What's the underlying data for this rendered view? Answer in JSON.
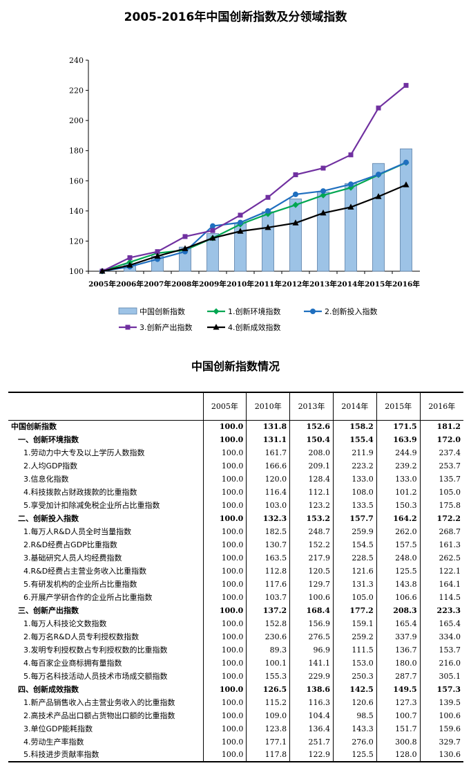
{
  "chart_data": {
    "type": "bar+line",
    "title": "2005-2016年中国创新指数及分领域指数",
    "x": [
      "2005年",
      "2006年",
      "2007年",
      "2008年",
      "2009年",
      "2010年",
      "2011年",
      "2012年",
      "2013年",
      "2014年",
      "2015年",
      "2016年"
    ],
    "ylim": [
      100,
      240
    ],
    "yticks": [
      100,
      120,
      140,
      160,
      180,
      200,
      220,
      240
    ],
    "grid": false,
    "legend_position": "bottom",
    "bar_series": {
      "name": "中国创新指数",
      "color": "#9dc3e6",
      "values": [
        100.0,
        105.0,
        110.0,
        116.0,
        125.0,
        131.8,
        139.5,
        148.0,
        152.6,
        158.2,
        171.5,
        181.2
      ]
    },
    "series": [
      {
        "name": "1.创新环境指数",
        "color": "#00a651",
        "marker": "diamond",
        "values": [
          100.0,
          106.0,
          112.0,
          114.0,
          122.0,
          131.1,
          138.0,
          144.0,
          150.4,
          155.4,
          163.9,
          172.0
        ]
      },
      {
        "name": "2.创新投入指数",
        "color": "#1f6fbf",
        "marker": "circle",
        "values": [
          100.0,
          103.0,
          108.0,
          113.0,
          130.0,
          132.3,
          140.0,
          151.0,
          153.2,
          157.7,
          164.2,
          172.2
        ]
      },
      {
        "name": "3.创新产出指数",
        "color": "#7030a0",
        "marker": "square",
        "values": [
          100.0,
          109.0,
          113.0,
          123.0,
          127.0,
          137.2,
          149.0,
          164.0,
          168.4,
          177.2,
          208.3,
          223.3
        ]
      },
      {
        "name": "4.创新成效指数",
        "color": "#000000",
        "marker": "triangle",
        "values": [
          100.0,
          104.0,
          110.0,
          115.0,
          122.0,
          126.5,
          129.0,
          132.0,
          138.6,
          142.5,
          149.5,
          157.3
        ]
      }
    ]
  },
  "table": {
    "title": "中国创新指数情况",
    "headers": [
      "",
      "2005年",
      "2010年",
      "2013年",
      "2014年",
      "2015年",
      "2016年"
    ],
    "rows": [
      {
        "level": 0,
        "name": "中国创新指数",
        "values": [
          "100.0",
          "131.8",
          "152.6",
          "158.2",
          "171.5",
          "181.2"
        ]
      },
      {
        "level": 1,
        "name": "一、创新环境指数",
        "values": [
          "100.0",
          "131.1",
          "150.4",
          "155.4",
          "163.9",
          "172.0"
        ]
      },
      {
        "level": 2,
        "name": "1.劳动力中大专及以上学历人数指数",
        "values": [
          "100.0",
          "161.7",
          "208.0",
          "211.9",
          "244.9",
          "237.4"
        ]
      },
      {
        "level": 2,
        "name": "2.人均GDP指数",
        "values": [
          "100.0",
          "166.6",
          "209.1",
          "223.2",
          "239.2",
          "253.7"
        ]
      },
      {
        "level": 2,
        "name": "3.信息化指数",
        "values": [
          "100.0",
          "120.0",
          "128.4",
          "133.0",
          "133.0",
          "135.7"
        ]
      },
      {
        "level": 2,
        "name": "4.科技拨款占财政拨款的比重指数",
        "values": [
          "100.0",
          "116.4",
          "112.1",
          "108.0",
          "101.2",
          "105.0"
        ]
      },
      {
        "level": 2,
        "name": "5.享受加计扣除减免税企业所占比重指数",
        "values": [
          "100.0",
          "103.0",
          "123.2",
          "133.5",
          "150.3",
          "175.8"
        ]
      },
      {
        "level": 1,
        "name": "二、创新投入指数",
        "values": [
          "100.0",
          "132.3",
          "153.2",
          "157.7",
          "164.2",
          "172.2"
        ]
      },
      {
        "level": 2,
        "name": "1.每万人R&D人员全时当量指数",
        "values": [
          "100.0",
          "182.5",
          "248.7",
          "259.9",
          "262.0",
          "268.7"
        ]
      },
      {
        "level": 2,
        "name": "2.R&D经费占GDP比重指数",
        "values": [
          "100.0",
          "130.7",
          "152.2",
          "154.5",
          "157.5",
          "161.3"
        ]
      },
      {
        "level": 2,
        "name": "3.基础研究人员人均经费指数",
        "values": [
          "100.0",
          "163.5",
          "217.9",
          "228.5",
          "248.0",
          "262.5"
        ]
      },
      {
        "level": 2,
        "name": "4.R&D经费占主营业务收入比重指数",
        "values": [
          "100.0",
          "112.8",
          "120.5",
          "121.6",
          "125.5",
          "122.1"
        ]
      },
      {
        "level": 2,
        "name": "5.有研发机构的企业所占比重指数",
        "values": [
          "100.0",
          "117.6",
          "129.7",
          "131.3",
          "143.8",
          "164.1"
        ]
      },
      {
        "level": 2,
        "name": "6.开展产学研合作的企业所占比重指数",
        "values": [
          "100.0",
          "103.7",
          "100.6",
          "105.0",
          "106.6",
          "114.5"
        ]
      },
      {
        "level": 1,
        "name": "三、创新产出指数",
        "values": [
          "100.0",
          "137.2",
          "168.4",
          "177.2",
          "208.3",
          "223.3"
        ]
      },
      {
        "level": 2,
        "name": "1.每万人科技论文数指数",
        "values": [
          "100.0",
          "152.8",
          "156.9",
          "159.1",
          "165.4",
          "165.4"
        ]
      },
      {
        "level": 2,
        "name": "2.每万名R&D人员专利授权数指数",
        "values": [
          "100.0",
          "230.6",
          "276.5",
          "259.2",
          "337.9",
          "334.0"
        ]
      },
      {
        "level": 2,
        "name": "3.发明专利授权数占专利授权数的比重指数",
        "values": [
          "100.0",
          "89.3",
          "96.9",
          "111.5",
          "136.7",
          "153.7"
        ]
      },
      {
        "level": 2,
        "name": "4.每百家企业商标拥有量指数",
        "values": [
          "100.0",
          "100.1",
          "141.1",
          "153.0",
          "180.0",
          "216.0"
        ]
      },
      {
        "level": 2,
        "name": "5.每万名科技活动人员技术市场成交额指数",
        "values": [
          "100.0",
          "155.3",
          "229.9",
          "250.3",
          "287.7",
          "305.1"
        ]
      },
      {
        "level": 1,
        "name": "四、创新成效指数",
        "values": [
          "100.0",
          "126.5",
          "138.6",
          "142.5",
          "149.5",
          "157.3"
        ]
      },
      {
        "level": 2,
        "name": "1.新产品销售收入占主营业务收入的比重指数",
        "values": [
          "100.0",
          "115.2",
          "116.3",
          "120.6",
          "127.3",
          "139.5"
        ]
      },
      {
        "level": 2,
        "name": "2.高技术产品出口额占货物出口额的比重指数",
        "values": [
          "100.0",
          "109.0",
          "104.4",
          "98.5",
          "100.7",
          "100.6"
        ]
      },
      {
        "level": 2,
        "name": "3.单位GDP能耗指数",
        "values": [
          "100.0",
          "123.8",
          "136.4",
          "143.3",
          "151.7",
          "159.6"
        ]
      },
      {
        "level": 2,
        "name": "4.劳动生产率指数",
        "values": [
          "100.0",
          "177.1",
          "251.7",
          "276.0",
          "300.8",
          "329.7"
        ]
      },
      {
        "level": 2,
        "name": "5.科技进步贡献率指数",
        "values": [
          "100.0",
          "117.8",
          "122.9",
          "125.5",
          "128.0",
          "130.6"
        ]
      }
    ]
  }
}
